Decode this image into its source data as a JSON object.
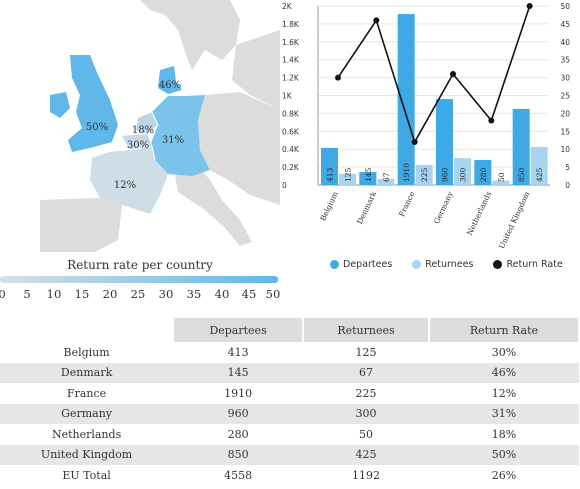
{
  "map": {
    "caption": "Return rate per country",
    "scale_ticks": [
      "0",
      "5",
      "10",
      "15",
      "20",
      "25",
      "30",
      "35",
      "40",
      "45",
      "50"
    ],
    "labels": [
      {
        "country": "United Kingdom",
        "text": "50%"
      },
      {
        "country": "Denmark",
        "text": "46%"
      },
      {
        "country": "Netherlands",
        "text": "18%"
      },
      {
        "country": "Belgium",
        "text": "30%"
      },
      {
        "country": "Germany",
        "text": "31%"
      },
      {
        "country": "France",
        "text": "12%"
      }
    ],
    "colors": {
      "low": "#cfdde6",
      "high": "#5fb8e9",
      "land": "#dcdcdc",
      "sea": "#ffffff"
    }
  },
  "chart_data": {
    "type": "bar",
    "categories": [
      "Belgium",
      "Denmark",
      "France",
      "Germany",
      "Netherlands",
      "United Kingdom"
    ],
    "series": [
      {
        "name": "Departees",
        "kind": "bar",
        "color": "#3fa9e6",
        "values": [
          413,
          145,
          1910,
          960,
          280,
          850
        ]
      },
      {
        "name": "Returnees",
        "kind": "bar",
        "color": "#a9d4ef",
        "values": [
          125,
          67,
          225,
          300,
          50,
          425
        ]
      },
      {
        "name": "Return Rate",
        "kind": "line",
        "axis": "right",
        "color": "#111111",
        "values": [
          30,
          46,
          12,
          31,
          18,
          50
        ]
      }
    ],
    "ylim": [
      0,
      2000
    ],
    "yticks": [
      "0",
      "0.2K",
      "0.4K",
      "0.6K",
      "0.8K",
      "1K",
      "1.2K",
      "1.4K",
      "1.6K",
      "1.8K",
      "2K"
    ],
    "y2lim": [
      0,
      50
    ],
    "y2ticks": [
      "0",
      "5",
      "10",
      "15",
      "20",
      "25",
      "30",
      "35",
      "40",
      "45",
      "50"
    ],
    "legend_position": "bottom"
  },
  "table": {
    "headers": [
      "",
      "Departees",
      "Returnees",
      "Return Rate"
    ],
    "rows": [
      [
        "Belgium",
        "413",
        "125",
        "30%"
      ],
      [
        "Denmark",
        "145",
        "67",
        "46%"
      ],
      [
        "France",
        "1910",
        "225",
        "12%"
      ],
      [
        "Germany",
        "960",
        "300",
        "31%"
      ],
      [
        "Netherlands",
        "280",
        "50",
        "18%"
      ],
      [
        "United Kingdom",
        "850",
        "425",
        "50%"
      ],
      [
        "EU Total",
        "4558",
        "1192",
        "26%"
      ]
    ]
  }
}
